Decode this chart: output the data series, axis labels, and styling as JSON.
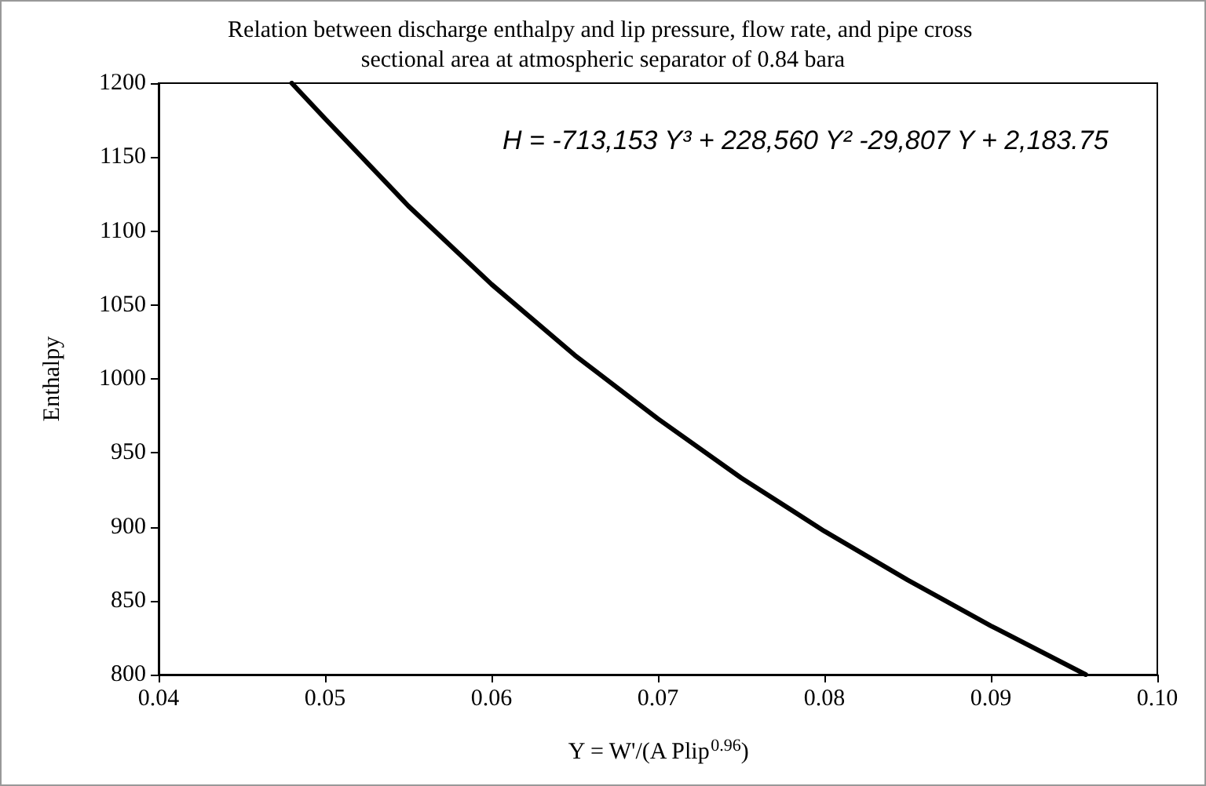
{
  "chart_data": {
    "type": "line",
    "title": "Relation between discharge enthalpy and lip pressure, flow rate, and pipe cross sectional area at atmospheric separator of 0.84 bara",
    "xlabel": "Y = W'/(A Plip$^{0.96}$)",
    "ylabel": "Enthalpy",
    "x": [
      0.048,
      0.05,
      0.055,
      0.06,
      0.065,
      0.07,
      0.075,
      0.08,
      0.085,
      0.09,
      0.0957
    ],
    "series": [
      {
        "color": "#000000",
        "values": [
          1200,
          1176,
          1117,
          1064,
          1016,
          973,
          933,
          897,
          864,
          833,
          800
        ]
      }
    ],
    "xlim": [
      0.04,
      0.1
    ],
    "xticks": [
      0.04,
      0.05,
      0.06,
      0.07,
      0.08,
      0.09,
      {
        "value": 0.1,
        "label": "0.10"
      }
    ],
    "ylim": [
      800,
      1200
    ],
    "yticks": [
      800,
      850,
      900,
      950,
      1000,
      1050,
      1100,
      1150,
      1200
    ],
    "annotations": [
      "H = -713,153 Y³ + 228,560 Y² -29,807 Y + 2,183.75"
    ],
    "grid": false,
    "marker": "none",
    "line_style": "solid"
  }
}
